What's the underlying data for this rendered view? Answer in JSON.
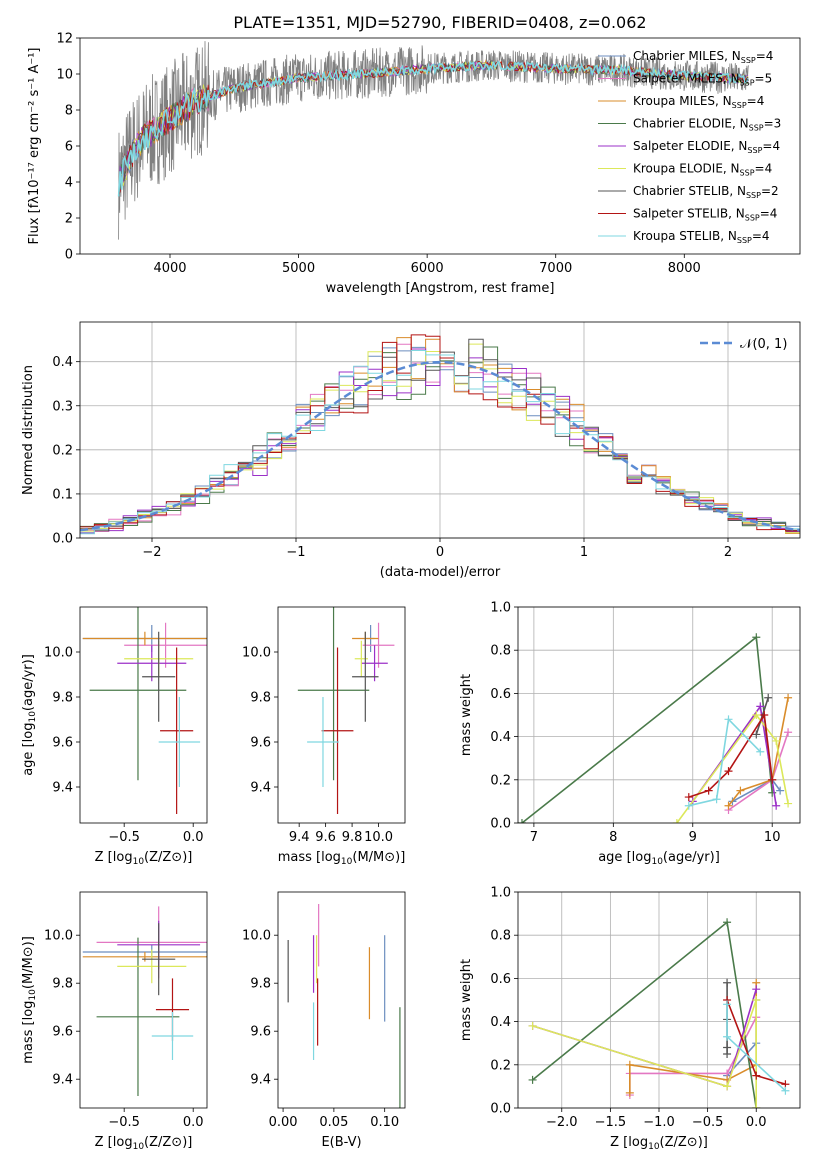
{
  "figure_title": "PLATE=1351, MJD=52790, FIBERID=0408, z=0.062",
  "colors": {
    "Chabrier MILES": "#6c8ebf",
    "Salpeter MILES": "#e377c2",
    "Kroupa MILES": "#d98c2b",
    "Chabrier ELODIE": "#4a7a4a",
    "Salpeter ELODIE": "#9b30c8",
    "Kroupa ELODIE": "#dce85a",
    "Chabrier STELIB": "#555555",
    "Salpeter STELIB": "#b31414",
    "Kroupa STELIB": "#7fd7e0",
    "data": "#808080",
    "gaussian": "#5b8bd4"
  },
  "chart_data": [
    {
      "id": "spectrum",
      "type": "line",
      "xlabel": "wavelength [Angstrom, rest frame]",
      "ylabel": "Flux [fλ10⁻¹⁷ erg cm⁻² s⁻¹ A⁻¹]",
      "xlim": [
        3300,
        8900
      ],
      "ylim": [
        0,
        12
      ],
      "xticks": [
        4000,
        5000,
        6000,
        7000,
        8000
      ],
      "yticks": [
        0,
        2,
        4,
        6,
        8,
        10,
        12
      ],
      "grid": false,
      "legend_position": "top-right",
      "continuum": {
        "x": [
          3600,
          3700,
          3800,
          3900,
          4000,
          4200,
          4500,
          5000,
          5500,
          6000,
          6500,
          7000,
          7500,
          8000,
          8500
        ],
        "y": [
          4.0,
          5.5,
          6.5,
          7.0,
          7.5,
          8.5,
          9.2,
          9.8,
          10.0,
          10.3,
          10.5,
          10.3,
          10.2,
          9.9,
          9.7
        ]
      },
      "legend": [
        {
          "label": "Chabrier MILES",
          "n_ssp": "4"
        },
        {
          "label": "Salpeter MILES",
          "n_ssp": "5"
        },
        {
          "label": "Kroupa MILES",
          "n_ssp": "4"
        },
        {
          "label": "Chabrier ELODIE",
          "n_ssp": "3"
        },
        {
          "label": "Salpeter ELODIE",
          "n_ssp": "4"
        },
        {
          "label": "Kroupa ELODIE",
          "n_ssp": "4"
        },
        {
          "label": "Chabrier STELIB",
          "n_ssp": "2"
        },
        {
          "label": "Salpeter STELIB",
          "n_ssp": "4"
        },
        {
          "label": "Kroupa STELIB",
          "n_ssp": "4"
        }
      ],
      "legend_sub": "SSP",
      "legend_prefix": "N"
    },
    {
      "id": "residuals",
      "type": "histogram",
      "xlabel": "(data-model)/error",
      "ylabel": "Normed distribution",
      "xlim": [
        -2.5,
        2.5
      ],
      "ylim": [
        0,
        0.49
      ],
      "xticks": [
        -2,
        -1,
        0,
        1,
        2
      ],
      "yticks": [
        0.0,
        0.1,
        0.2,
        0.3,
        0.4
      ],
      "grid": true,
      "legend_position": "top-right",
      "legend_label": "𝒩(0, 1)",
      "gaussian": {
        "mean": 0,
        "sigma": 1
      }
    },
    {
      "id": "age-vs-Z",
      "type": "errorbar",
      "xlabel": "Z [log10(Z/Z⊙)]",
      "ylabel": "age  [log10(age/yr)]",
      "xlim": [
        -0.82,
        0.1
      ],
      "ylim": [
        9.24,
        10.2
      ],
      "xticks": [
        -0.5,
        0.0
      ],
      "yticks": [
        9.4,
        9.6,
        9.8,
        10.0
      ],
      "points": [
        {
          "model": "Chabrier MILES",
          "x": -0.3,
          "xerr": 0.5,
          "y": 10.06,
          "yerr": 0.06
        },
        {
          "model": "Salpeter MILES",
          "x": -0.2,
          "xerr": 0.3,
          "y": 10.03,
          "yerr": 0.1
        },
        {
          "model": "Kroupa MILES",
          "x": -0.35,
          "xerr": 0.45,
          "y": 10.06,
          "yerr": 0.03
        },
        {
          "model": "Chabrier ELODIE",
          "x": -0.4,
          "xerr": 0.35,
          "y": 9.83,
          "yerr": 0.4
        },
        {
          "model": "Salpeter ELODIE",
          "x": -0.3,
          "xerr": 0.25,
          "y": 9.95,
          "yerr": 0.08
        },
        {
          "model": "Kroupa ELODIE",
          "x": -0.25,
          "xerr": 0.25,
          "y": 9.97,
          "yerr": 0.08
        },
        {
          "model": "Chabrier STELIB",
          "x": -0.25,
          "xerr": 0.12,
          "y": 9.89,
          "yerr": 0.2
        },
        {
          "model": "Salpeter STELIB",
          "x": -0.12,
          "xerr": 0.12,
          "y": 9.65,
          "yerr": 0.37
        },
        {
          "model": "Kroupa STELIB",
          "x": -0.1,
          "xerr": 0.15,
          "y": 9.6,
          "yerr": 0.2
        }
      ]
    },
    {
      "id": "age-vs-mass",
      "type": "errorbar",
      "xlabel": "mass [log10(M/M⊙)]",
      "ylabel": "",
      "xlim": [
        9.24,
        10.2
      ],
      "ylim": [
        9.24,
        10.2
      ],
      "xticks": [
        9.4,
        9.6,
        9.8,
        10.0
      ],
      "yticks": [
        9.4,
        9.6,
        9.8,
        10.0
      ],
      "points": [
        {
          "model": "Chabrier MILES",
          "x": 9.94,
          "xerr": 0.03,
          "y": 10.06,
          "yerr": 0.06
        },
        {
          "model": "Salpeter MILES",
          "x": 10.0,
          "xerr": 0.12,
          "y": 10.03,
          "yerr": 0.1
        },
        {
          "model": "Kroupa MILES",
          "x": 9.9,
          "xerr": 0.1,
          "y": 10.06,
          "yerr": 0.03
        },
        {
          "model": "Chabrier ELODIE",
          "x": 9.66,
          "xerr": 0.27,
          "y": 9.83,
          "yerr": 0.4
        },
        {
          "model": "Salpeter ELODIE",
          "x": 9.97,
          "xerr": 0.1,
          "y": 9.95,
          "yerr": 0.08
        },
        {
          "model": "Kroupa ELODIE",
          "x": 9.87,
          "xerr": 0.05,
          "y": 9.97,
          "yerr": 0.08
        },
        {
          "model": "Chabrier STELIB",
          "x": 9.9,
          "xerr": 0.1,
          "y": 9.89,
          "yerr": 0.2
        },
        {
          "model": "Salpeter STELIB",
          "x": 9.69,
          "xerr": 0.12,
          "y": 9.65,
          "yerr": 0.37
        },
        {
          "model": "Kroupa STELIB",
          "x": 9.58,
          "xerr": 0.12,
          "y": 9.6,
          "yerr": 0.2
        }
      ]
    },
    {
      "id": "weight-vs-age",
      "type": "line",
      "xlabel": "age  [log10(age/yr)]",
      "ylabel": "mass weight",
      "xlim": [
        6.8,
        10.35
      ],
      "ylim": [
        0,
        1.0
      ],
      "xticks": [
        7,
        8,
        9,
        10
      ],
      "yticks": [
        0.0,
        0.2,
        0.4,
        0.6,
        0.8,
        1.0
      ],
      "grid": true,
      "series": [
        {
          "model": "Chabrier MILES",
          "x": [
            9.5,
            10.0,
            10.1
          ],
          "y": [
            0.1,
            0.2,
            0.15
          ]
        },
        {
          "model": "Salpeter MILES",
          "x": [
            9.45,
            10.0,
            10.2
          ],
          "y": [
            0.06,
            0.2,
            0.42
          ]
        },
        {
          "model": "Kroupa MILES",
          "x": [
            9.45,
            9.6,
            10.0,
            10.2
          ],
          "y": [
            0.08,
            0.15,
            0.2,
            0.58
          ]
        },
        {
          "model": "Chabrier ELODIE",
          "x": [
            6.85,
            9.8,
            10.0
          ],
          "y": [
            0.0,
            0.86,
            0.14
          ]
        },
        {
          "model": "Salpeter ELODIE",
          "x": [
            9.0,
            9.85,
            10.05
          ],
          "y": [
            0.1,
            0.54,
            0.08
          ]
        },
        {
          "model": "Kroupa ELODIE",
          "x": [
            8.8,
            9.8,
            10.05,
            10.2
          ],
          "y": [
            0.0,
            0.5,
            0.38,
            0.09
          ]
        },
        {
          "model": "Chabrier STELIB",
          "x": [
            9.8,
            9.95
          ],
          "y": [
            0.41,
            0.58
          ]
        },
        {
          "model": "Salpeter STELIB",
          "x": [
            8.95,
            9.2,
            9.45,
            9.9,
            10.0
          ],
          "y": [
            0.12,
            0.15,
            0.24,
            0.5,
            0.2
          ]
        },
        {
          "model": "Kroupa STELIB",
          "x": [
            8.95,
            9.3,
            9.45,
            9.85
          ],
          "y": [
            0.08,
            0.11,
            0.48,
            0.33
          ]
        }
      ]
    },
    {
      "id": "mass-vs-Z",
      "type": "errorbar",
      "xlabel": "Z [log10(Z/Z⊙)]",
      "ylabel": "mass [log10(M/M⊙)]",
      "xlim": [
        -0.82,
        0.1
      ],
      "ylim": [
        9.28,
        10.18
      ],
      "xticks": [
        -0.5,
        0.0
      ],
      "yticks": [
        9.4,
        9.6,
        9.8,
        10.0
      ],
      "points": [
        {
          "model": "Chabrier MILES",
          "x": -0.3,
          "xerr": 0.5,
          "y": 9.93,
          "yerr": 0.03
        },
        {
          "model": "Salpeter MILES",
          "x": -0.25,
          "xerr": 0.45,
          "y": 9.97,
          "yerr": 0.15
        },
        {
          "model": "Kroupa MILES",
          "x": -0.35,
          "xerr": 0.45,
          "y": 9.91,
          "yerr": 0.02
        },
        {
          "model": "Chabrier ELODIE",
          "x": -0.4,
          "xerr": 0.3,
          "y": 9.66,
          "yerr": 0.33
        },
        {
          "model": "Salpeter ELODIE",
          "x": -0.25,
          "xerr": 0.3,
          "y": 9.96,
          "yerr": 0.1
        },
        {
          "model": "Kroupa ELODIE",
          "x": -0.3,
          "xerr": 0.25,
          "y": 9.87,
          "yerr": 0.07
        },
        {
          "model": "Chabrier STELIB",
          "x": -0.25,
          "xerr": 0.12,
          "y": 9.9,
          "yerr": 0.15
        },
        {
          "model": "Salpeter STELIB",
          "x": -0.15,
          "xerr": 0.12,
          "y": 9.69,
          "yerr": 0.13
        },
        {
          "model": "Kroupa STELIB",
          "x": -0.15,
          "xerr": 0.15,
          "y": 9.58,
          "yerr": 0.1
        }
      ]
    },
    {
      "id": "mass-vs-EBV",
      "type": "errorbar",
      "xlabel": "E(B-V)",
      "ylabel": "",
      "xlim": [
        -0.005,
        0.12
      ],
      "ylim": [
        9.28,
        10.18
      ],
      "xticks": [
        0.0,
        0.05,
        0.1
      ],
      "yticks": [
        9.4,
        9.6,
        9.8,
        10.0
      ],
      "points": [
        {
          "model": "Chabrier MILES",
          "x": 0.1,
          "xerr": 0,
          "y": 9.82,
          "yerr": 0.18
        },
        {
          "model": "Salpeter MILES",
          "x": 0.035,
          "xerr": 0,
          "y": 10.0,
          "yerr": 0.13
        },
        {
          "model": "Kroupa MILES",
          "x": 0.085,
          "xerr": 0,
          "y": 9.8,
          "yerr": 0.15
        },
        {
          "model": "Chabrier ELODIE",
          "x": 0.115,
          "xerr": 0,
          "y": 9.45,
          "yerr": 0.25
        },
        {
          "model": "Salpeter ELODIE",
          "x": 0.03,
          "xerr": 0,
          "y": 9.88,
          "yerr": 0.12
        },
        {
          "model": "Kroupa ELODIE",
          "x": 0.033,
          "xerr": 0,
          "y": 9.9,
          "yerr": 0.1
        },
        {
          "model": "Chabrier STELIB",
          "x": 0.005,
          "xerr": 0,
          "y": 9.85,
          "yerr": 0.13
        },
        {
          "model": "Salpeter STELIB",
          "x": 0.034,
          "xerr": 0,
          "y": 9.68,
          "yerr": 0.14
        },
        {
          "model": "Kroupa STELIB",
          "x": 0.03,
          "xerr": 0,
          "y": 9.6,
          "yerr": 0.12
        }
      ]
    },
    {
      "id": "weight-vs-Z",
      "type": "line",
      "xlabel": "Z [log10(Z/Z⊙)]",
      "ylabel": "mass weight",
      "xlim": [
        -2.45,
        0.45
      ],
      "ylim": [
        0,
        1.0
      ],
      "xticks": [
        -2.0,
        -1.5,
        -1.0,
        -0.5,
        0.0
      ],
      "yticks": [
        0.0,
        0.2,
        0.4,
        0.6,
        0.8,
        1.0
      ],
      "grid": true,
      "series": [
        {
          "model": "Chabrier MILES",
          "x": [
            -0.3,
            0.0,
            0.0
          ],
          "y": [
            0.15,
            0.3,
            0.5
          ]
        },
        {
          "model": "Salpeter MILES",
          "x": [
            -1.3,
            -1.3,
            -0.3,
            0.0
          ],
          "y": [
            0.06,
            0.16,
            0.16,
            0.42
          ]
        },
        {
          "model": "Kroupa MILES",
          "x": [
            -1.3,
            -1.3,
            -0.3,
            0.0,
            0.0
          ],
          "y": [
            0.07,
            0.2,
            0.13,
            0.2,
            0.58
          ]
        },
        {
          "model": "Chabrier ELODIE",
          "x": [
            -2.3,
            -0.3,
            0.0
          ],
          "y": [
            0.13,
            0.86,
            0.0
          ]
        },
        {
          "model": "Salpeter ELODIE",
          "x": [
            -2.3,
            -0.3,
            0.0
          ],
          "y": [
            0.38,
            0.1,
            0.55
          ]
        },
        {
          "model": "Kroupa ELODIE",
          "x": [
            -2.3,
            -0.3,
            0.0,
            0.0
          ],
          "y": [
            0.38,
            0.1,
            0.5,
            0.0
          ]
        },
        {
          "model": "Chabrier STELIB",
          "x": [
            -0.3,
            -0.3,
            -0.3,
            -0.3
          ],
          "y": [
            0.25,
            0.41,
            0.58,
            0.28
          ]
        },
        {
          "model": "Salpeter STELIB",
          "x": [
            -0.3,
            0.0,
            0.3
          ],
          "y": [
            0.5,
            0.15,
            0.11
          ]
        },
        {
          "model": "Kroupa STELIB",
          "x": [
            -0.3,
            -0.3,
            0.3
          ],
          "y": [
            0.48,
            0.33,
            0.08
          ]
        }
      ]
    }
  ]
}
